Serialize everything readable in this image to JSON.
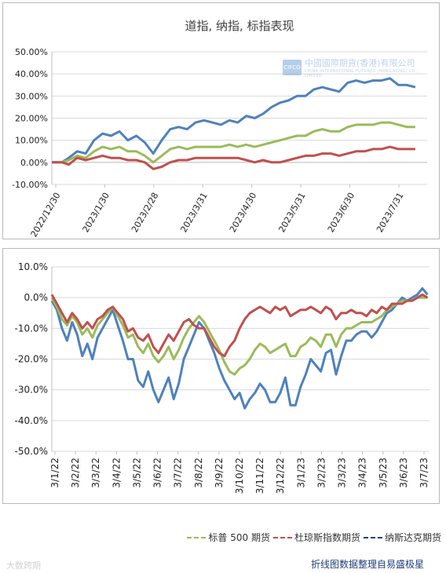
{
  "top_chart": {
    "title": "道指, 纳指, 标指表现",
    "watermark_cn": "中國國際期貨(香港)有限公司",
    "watermark_en": "CHINA INTERNATIONAL FUTURES (HONG KONG) CO., LIMITED",
    "watermark_logo": "CIFCO"
  },
  "bottom_chart": {},
  "legend": [
    {
      "label": "标普 500 期货",
      "color": "#9bbb59"
    },
    {
      "label": "杜琼斯指数期货",
      "color": "#c0504d"
    },
    {
      "label": "纳斯达克期货",
      "color": "#1f3f7a"
    }
  ],
  "source_note": "折线图数据整理自易盛极星",
  "watermark_bottom": "大数跨期",
  "chart_data": [
    {
      "type": "line",
      "title": "道指, 纳指, 标指表现",
      "xlabel": "",
      "ylabel": "",
      "x_ticks": [
        "2022/12/30",
        "2023/1/30",
        "2023/2/28",
        "2023/3/31",
        "2023/4/30",
        "2023/5/31",
        "2023/6/30",
        "2023/7/31"
      ],
      "y_ticks": [
        "50.00%",
        "40.00%",
        "30.00%",
        "20.00%",
        "10.00%",
        "0.00%",
        "-10.00%"
      ],
      "ylim": [
        -10,
        50
      ],
      "grid": "horizontal",
      "series": [
        {
          "color": "#4f81bd",
          "x": [
            0,
            6,
            10,
            15,
            20,
            25,
            30,
            35,
            40,
            45,
            50,
            55,
            60,
            65,
            70,
            75,
            80,
            85,
            90,
            95,
            100,
            105,
            110,
            115,
            120,
            125,
            130,
            135,
            140,
            145,
            150,
            155,
            160,
            165,
            170,
            175,
            180,
            185,
            190,
            195,
            200,
            205,
            210,
            215
          ],
          "values": [
            0,
            0,
            2,
            5,
            4,
            10,
            13,
            12,
            14,
            10,
            12,
            9,
            4,
            10,
            15,
            16,
            15,
            18,
            19,
            18,
            17,
            19,
            18,
            21,
            20,
            22,
            25,
            27,
            28,
            30,
            30,
            33,
            34,
            33,
            32,
            36,
            37,
            36,
            37,
            37,
            38,
            35,
            35,
            34
          ]
        },
        {
          "color": "#9bbb59",
          "x": [
            0,
            6,
            10,
            15,
            20,
            25,
            30,
            35,
            40,
            45,
            50,
            55,
            60,
            65,
            70,
            75,
            80,
            85,
            90,
            95,
            100,
            105,
            110,
            115,
            120,
            125,
            130,
            135,
            140,
            145,
            150,
            155,
            160,
            165,
            170,
            175,
            180,
            185,
            190,
            195,
            200,
            205,
            210,
            215
          ],
          "values": [
            0,
            0,
            1,
            3,
            2,
            5,
            7,
            6,
            7,
            5,
            5,
            3,
            0,
            3,
            6,
            7,
            6,
            7,
            7,
            7,
            7,
            8,
            7,
            8,
            7,
            8,
            9,
            10,
            11,
            12,
            12,
            14,
            15,
            14,
            14,
            16,
            17,
            17,
            17,
            18,
            18,
            17,
            16,
            16
          ]
        },
        {
          "color": "#c0504d",
          "x": [
            0,
            6,
            10,
            15,
            20,
            25,
            30,
            35,
            40,
            45,
            50,
            55,
            60,
            65,
            70,
            75,
            80,
            85,
            90,
            95,
            100,
            105,
            110,
            115,
            120,
            125,
            130,
            135,
            140,
            145,
            150,
            155,
            160,
            165,
            170,
            175,
            180,
            185,
            190,
            195,
            200,
            205,
            210,
            215
          ],
          "values": [
            0,
            0,
            -1,
            2,
            1,
            2,
            3,
            2,
            2,
            1,
            1,
            0,
            -3,
            -2,
            0,
            1,
            1,
            2,
            2,
            2,
            2,
            2,
            2,
            1,
            0,
            1,
            0,
            0,
            1,
            2,
            3,
            3,
            4,
            4,
            3,
            4,
            5,
            5,
            6,
            6,
            7,
            6,
            6,
            6
          ]
        }
      ]
    },
    {
      "type": "line",
      "xlabel": "",
      "ylabel": "",
      "x_ticks": [
        "3/1/22",
        "3/2/22",
        "3/3/22",
        "3/4/22",
        "3/5/22",
        "3/6/22",
        "3/7/22",
        "3/8/22",
        "3/9/22",
        "3/10/22",
        "3/11/22",
        "3/12/22",
        "3/1/23",
        "3/2/23",
        "3/3/23",
        "3/4/23",
        "3/5/23",
        "3/6/23",
        "3/7/23"
      ],
      "y_ticks": [
        "10.0%",
        "0.0%",
        "-10.0%",
        "-20.0%",
        "-30.0%",
        "-40.0%",
        "-50.0%"
      ],
      "ylim": [
        -50,
        10
      ],
      "grid": "horizontal",
      "series": [
        {
          "color": "#4f81bd",
          "x": [
            0,
            0.25,
            0.5,
            0.75,
            1,
            1.25,
            1.5,
            1.75,
            2,
            2.25,
            2.5,
            2.75,
            3,
            3.25,
            3.5,
            3.75,
            4,
            4.25,
            4.5,
            4.75,
            5,
            5.25,
            5.5,
            5.75,
            6,
            6.25,
            6.5,
            6.75,
            7,
            7.25,
            7.5,
            7.75,
            8,
            8.25,
            8.5,
            8.75,
            9,
            9.25,
            9.5,
            9.75,
            10,
            10.25,
            10.5,
            10.75,
            11,
            11.25,
            11.5,
            11.75,
            12,
            12.25,
            12.5,
            12.75,
            13,
            13.25,
            13.5,
            13.75,
            14,
            14.25,
            14.5,
            14.75,
            15,
            15.25,
            15.5,
            15.75,
            16,
            16.25,
            16.5,
            16.75,
            17,
            17.25,
            17.5,
            17.75,
            18,
            18.25,
            18.5
          ],
          "values": [
            -1,
            -4,
            -10,
            -14,
            -8,
            -12,
            -19,
            -15,
            -20,
            -13,
            -10,
            -7,
            -4,
            -9,
            -14,
            -20,
            -20,
            -27,
            -29,
            -24,
            -30,
            -34,
            -30,
            -26,
            -33,
            -28,
            -20,
            -16,
            -12,
            -8,
            -10,
            -14,
            -18,
            -23,
            -27,
            -30,
            -33,
            -31,
            -36,
            -33,
            -31,
            -28,
            -30,
            -34,
            -34,
            -31,
            -26,
            -35,
            -35,
            -29,
            -25,
            -20,
            -22,
            -24,
            -18,
            -17,
            -25,
            -19,
            -14,
            -14,
            -12,
            -11,
            -11,
            -13,
            -11,
            -8,
            -5,
            -4,
            -2,
            0,
            -1,
            0,
            1,
            3,
            1
          ]
        },
        {
          "color": "#9bbb59",
          "x": [
            0,
            0.25,
            0.5,
            0.75,
            1,
            1.25,
            1.5,
            1.75,
            2,
            2.25,
            2.5,
            2.75,
            3,
            3.25,
            3.5,
            3.75,
            4,
            4.25,
            4.5,
            4.75,
            5,
            5.25,
            5.5,
            5.75,
            6,
            6.25,
            6.5,
            6.75,
            7,
            7.25,
            7.5,
            7.75,
            8,
            8.25,
            8.5,
            8.75,
            9,
            9.25,
            9.5,
            9.75,
            10,
            10.25,
            10.5,
            10.75,
            11,
            11.25,
            11.5,
            11.75,
            12,
            12.25,
            12.5,
            12.75,
            13,
            13.25,
            13.5,
            13.75,
            14,
            14.25,
            14.5,
            14.75,
            15,
            15.25,
            15.5,
            15.75,
            16,
            16.25,
            16.5,
            16.75,
            17,
            17.25,
            17.5,
            17.75,
            18,
            18.25,
            18.5
          ],
          "values": [
            0,
            -3,
            -7,
            -9,
            -6,
            -8,
            -12,
            -10,
            -13,
            -9,
            -7,
            -5,
            -3,
            -6,
            -9,
            -13,
            -12,
            -16,
            -18,
            -15,
            -19,
            -21,
            -19,
            -16,
            -20,
            -17,
            -13,
            -10,
            -8,
            -6,
            -8,
            -11,
            -14,
            -17,
            -21,
            -24,
            -25,
            -23,
            -22,
            -20,
            -17,
            -15,
            -16,
            -18,
            -17,
            -16,
            -15,
            -19,
            -19,
            -16,
            -15,
            -13,
            -14,
            -16,
            -12,
            -12,
            -16,
            -12,
            -10,
            -10,
            -9,
            -8,
            -8,
            -8,
            -7,
            -6,
            -4,
            -3,
            -2,
            -1,
            -1,
            -1,
            0,
            0,
            0
          ]
        },
        {
          "color": "#c0504d",
          "x": [
            0,
            0.25,
            0.5,
            0.75,
            1,
            1.25,
            1.5,
            1.75,
            2,
            2.25,
            2.5,
            2.75,
            3,
            3.25,
            3.5,
            3.75,
            4,
            4.25,
            4.5,
            4.75,
            5,
            5.25,
            5.5,
            5.75,
            6,
            6.25,
            6.5,
            6.75,
            7,
            7.25,
            7.5,
            7.75,
            8,
            8.25,
            8.5,
            8.75,
            9,
            9.25,
            9.5,
            9.75,
            10,
            10.25,
            10.5,
            10.75,
            11,
            11.25,
            11.5,
            11.75,
            12,
            12.25,
            12.5,
            12.75,
            13,
            13.25,
            13.5,
            13.75,
            14,
            14.25,
            14.5,
            14.75,
            15,
            15.25,
            15.5,
            15.75,
            16,
            16.25,
            16.5,
            16.75,
            17,
            17.25,
            17.5,
            17.75,
            18,
            18.25,
            18.5
          ],
          "values": [
            1,
            -2,
            -5,
            -8,
            -5,
            -7,
            -10,
            -8,
            -10,
            -7,
            -6,
            -4,
            -3,
            -5,
            -7,
            -11,
            -10,
            -13,
            -14,
            -12,
            -16,
            -18,
            -15,
            -12,
            -14,
            -11,
            -8,
            -7,
            -9,
            -10,
            -10,
            -13,
            -16,
            -18,
            -19,
            -16,
            -14,
            -10,
            -7,
            -5,
            -4,
            -3,
            -4,
            -5,
            -3,
            -4,
            -3,
            -6,
            -5,
            -4,
            -4,
            -3,
            -4,
            -5,
            -3,
            -4,
            -7,
            -5,
            -5,
            -4,
            -5,
            -5,
            -6,
            -4,
            -5,
            -3,
            -4,
            -2,
            -2,
            -2,
            -1,
            -1,
            0,
            1,
            0
          ]
        }
      ]
    }
  ]
}
